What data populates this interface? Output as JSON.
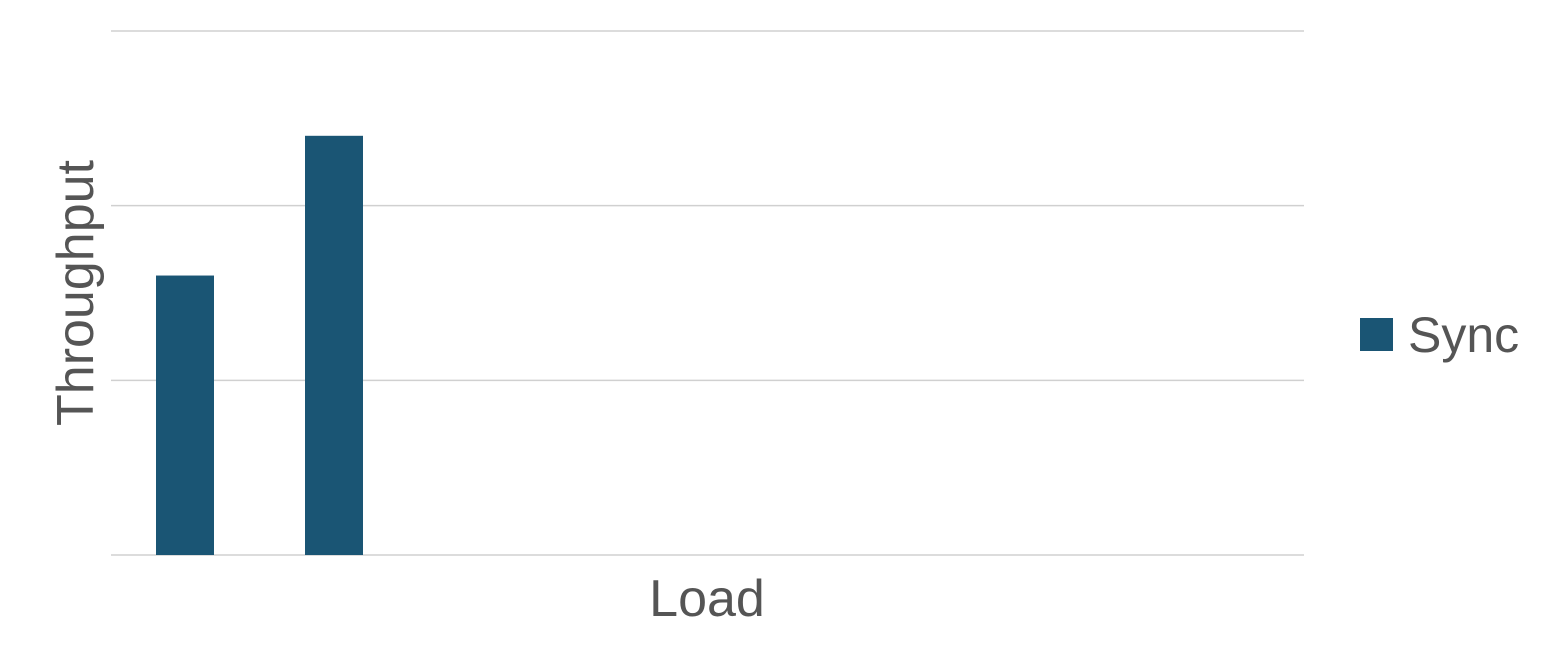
{
  "chart_data": {
    "type": "bar",
    "categories": [
      "",
      ""
    ],
    "series": [
      {
        "name": "Sync",
        "values": [
          1.6,
          2.4
        ]
      }
    ],
    "title": "",
    "xlabel": "Load",
    "ylabel": "Throughput",
    "ylim": [
      0,
      3
    ],
    "grid": true,
    "legend": "right",
    "colors": {
      "Sync": "#1a5574"
    }
  }
}
